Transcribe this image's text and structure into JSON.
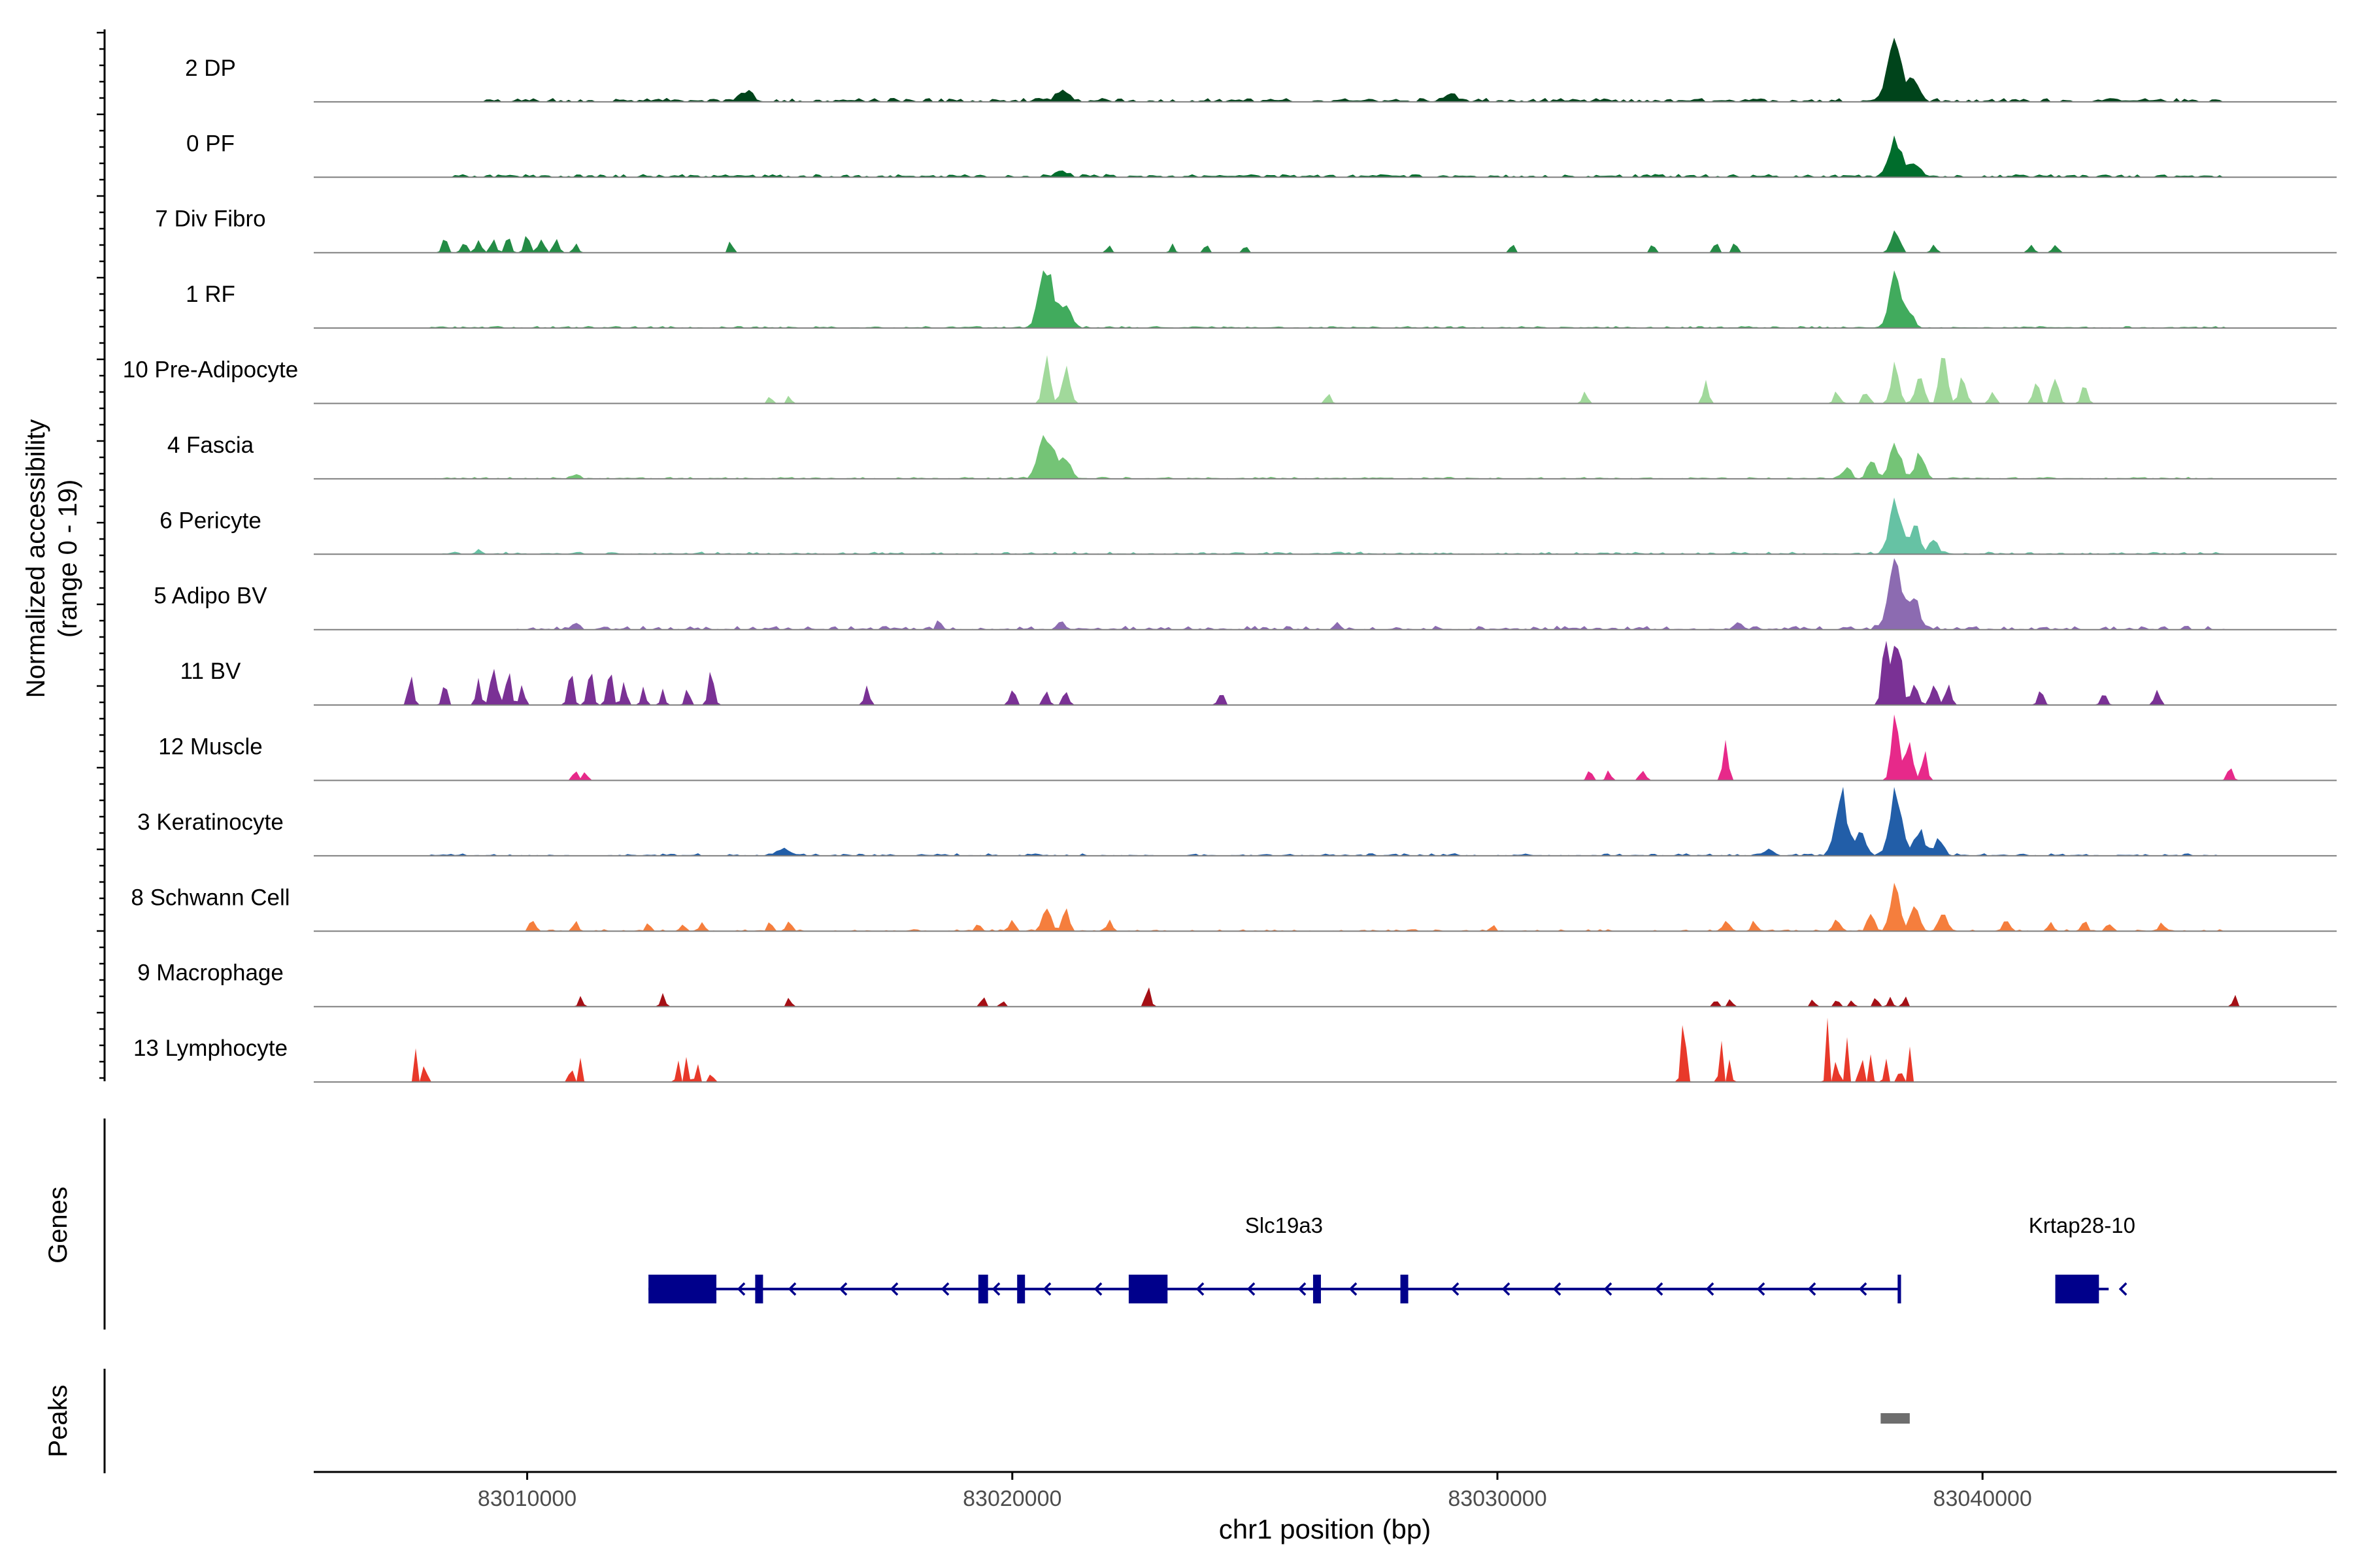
{
  "chart_data": {
    "type": "area",
    "ylabel_line1": "Normalized accessibility",
    "ylabel_line2": "(range 0 - 19)",
    "xlabel": "chr1 position (bp)",
    "xlim": [
      83005600,
      83047300
    ],
    "xticks": [
      {
        "value": 83010000,
        "label": "83010000"
      },
      {
        "value": 83020000,
        "label": "83020000"
      },
      {
        "value": 83030000,
        "label": "83030000"
      },
      {
        "value": 83040000,
        "label": "83040000"
      }
    ],
    "panels": {
      "genes": "Genes",
      "peaks": "Peaks"
    },
    "tracks": [
      {
        "name": "2 DP",
        "color": "#00441b",
        "bg": [
          0.02,
          0.06
        ],
        "bg_range": [
          83009000,
          83045000
        ],
        "peaks": [
          [
            83038200,
            0.85,
            220
          ],
          [
            83038600,
            0.3,
            160
          ],
          [
            83014500,
            0.15,
            200
          ],
          [
            83021000,
            0.12,
            200
          ],
          [
            83029000,
            0.1,
            200
          ]
        ]
      },
      {
        "name": "0 PF",
        "color": "#006d2c",
        "bg": [
          0.02,
          0.05
        ],
        "bg_range": [
          83008500,
          83045000
        ],
        "peaks": [
          [
            83038200,
            0.55,
            180
          ],
          [
            83038600,
            0.2,
            150
          ],
          [
            83021000,
            0.08,
            200
          ]
        ]
      },
      {
        "name": "7 Div Fibro",
        "color": "#238b45",
        "bg": [
          0,
          0
        ],
        "bg_range": [
          83008000,
          83045000
        ],
        "peaks": [
          [
            83008300,
            0.2,
            80
          ],
          [
            83008700,
            0.18,
            80
          ],
          [
            83009000,
            0.22,
            80
          ],
          [
            83009300,
            0.18,
            80
          ],
          [
            83009600,
            0.24,
            80
          ],
          [
            83010000,
            0.3,
            80
          ],
          [
            83010300,
            0.26,
            80
          ],
          [
            83010600,
            0.2,
            80
          ],
          [
            83011000,
            0.15,
            70
          ],
          [
            83014200,
            0.2,
            60
          ],
          [
            83022000,
            0.15,
            60
          ],
          [
            83023300,
            0.12,
            60
          ],
          [
            83024000,
            0.14,
            60
          ],
          [
            83024800,
            0.12,
            60
          ],
          [
            83030300,
            0.15,
            60
          ],
          [
            83033200,
            0.15,
            60
          ],
          [
            83034500,
            0.18,
            70
          ],
          [
            83034900,
            0.16,
            70
          ],
          [
            83038200,
            0.4,
            120
          ],
          [
            83039000,
            0.12,
            80
          ],
          [
            83041000,
            0.14,
            80
          ],
          [
            83041500,
            0.12,
            80
          ]
        ]
      },
      {
        "name": "1 RF",
        "color": "#41ab5d",
        "bg": [
          0.01,
          0.03
        ],
        "bg_range": [
          83008000,
          83045000
        ],
        "peaks": [
          [
            83020700,
            0.85,
            200
          ],
          [
            83021100,
            0.3,
            180
          ],
          [
            83038200,
            0.8,
            160
          ],
          [
            83038500,
            0.25,
            140
          ]
        ]
      },
      {
        "name": "10 Pre-Adipocyte",
        "color": "#a1d99b",
        "bg": [
          0,
          0
        ],
        "bg_range": [
          83008000,
          83045000
        ],
        "peaks": [
          [
            83015000,
            0.15,
            60
          ],
          [
            83015400,
            0.15,
            60
          ],
          [
            83020700,
            0.7,
            100
          ],
          [
            83021100,
            0.55,
            120
          ],
          [
            83026500,
            0.15,
            80
          ],
          [
            83031800,
            0.15,
            80
          ],
          [
            83034300,
            0.3,
            80
          ],
          [
            83037000,
            0.18,
            90
          ],
          [
            83037600,
            0.2,
            90
          ],
          [
            83038200,
            0.55,
            120
          ],
          [
            83038700,
            0.45,
            120
          ],
          [
            83039200,
            0.95,
            110
          ],
          [
            83039600,
            0.4,
            100
          ],
          [
            83040200,
            0.2,
            80
          ],
          [
            83041100,
            0.35,
            90
          ],
          [
            83041500,
            0.45,
            90
          ],
          [
            83042100,
            0.25,
            90
          ]
        ]
      },
      {
        "name": "4 Fascia",
        "color": "#74c476",
        "bg": [
          0.01,
          0.03
        ],
        "bg_range": [
          83008000,
          83045000
        ],
        "peaks": [
          [
            83020700,
            0.75,
            200
          ],
          [
            83021100,
            0.25,
            160
          ],
          [
            83037200,
            0.2,
            120
          ],
          [
            83037700,
            0.3,
            120
          ],
          [
            83038200,
            0.6,
            150
          ],
          [
            83038700,
            0.4,
            130
          ],
          [
            83011000,
            0.08,
            100
          ]
        ]
      },
      {
        "name": "6 Pericyte",
        "color": "#66c2a4",
        "bg": [
          0.01,
          0.04
        ],
        "bg_range": [
          83008000,
          83045000
        ],
        "peaks": [
          [
            83038200,
            0.7,
            180
          ],
          [
            83038600,
            0.4,
            150
          ],
          [
            83039000,
            0.2,
            120
          ],
          [
            83009000,
            0.06,
            100
          ]
        ]
      },
      {
        "name": "5 Adipo BV",
        "color": "#8c6bb1",
        "bg": [
          0.01,
          0.06
        ],
        "bg_range": [
          83009500,
          83045000
        ],
        "peaks": [
          [
            83038200,
            1.0,
            200
          ],
          [
            83038600,
            0.4,
            160
          ],
          [
            83011000,
            0.12,
            100
          ],
          [
            83018500,
            0.12,
            80
          ],
          [
            83021000,
            0.1,
            100
          ],
          [
            83026700,
            0.1,
            80
          ],
          [
            83035000,
            0.1,
            80
          ]
        ]
      },
      {
        "name": "11 BV",
        "color": "#7a3195",
        "bg": [
          0,
          0
        ],
        "bg_range": [
          83008000,
          83045000
        ],
        "peaks": [
          [
            83007600,
            0.4,
            80
          ],
          [
            83008300,
            0.35,
            70
          ],
          [
            83009000,
            0.35,
            70
          ],
          [
            83009300,
            0.65,
            90
          ],
          [
            83009600,
            0.5,
            90
          ],
          [
            83009900,
            0.3,
            70
          ],
          [
            83010900,
            0.45,
            80
          ],
          [
            83011300,
            0.5,
            80
          ],
          [
            83011700,
            0.55,
            80
          ],
          [
            83012000,
            0.4,
            70
          ],
          [
            83012400,
            0.3,
            60
          ],
          [
            83012800,
            0.25,
            60
          ],
          [
            83013300,
            0.35,
            60
          ],
          [
            83013800,
            0.55,
            80
          ],
          [
            83017000,
            0.25,
            80
          ],
          [
            83020000,
            0.3,
            80
          ],
          [
            83020700,
            0.2,
            80
          ],
          [
            83021100,
            0.25,
            80
          ],
          [
            83024300,
            0.2,
            80
          ],
          [
            83038000,
            1.05,
            100
          ],
          [
            83038250,
            1.0,
            120
          ],
          [
            83038600,
            0.4,
            100
          ],
          [
            83039000,
            0.35,
            100
          ],
          [
            83039300,
            0.3,
            80
          ],
          [
            83041200,
            0.2,
            80
          ],
          [
            83042500,
            0.2,
            80
          ],
          [
            83043600,
            0.2,
            80
          ]
        ]
      },
      {
        "name": "12 Muscle",
        "color": "#e7298a",
        "bg": [
          0,
          0
        ],
        "bg_range": [
          83008000,
          83045000
        ],
        "peaks": [
          [
            83011000,
            0.15,
            80
          ],
          [
            83011200,
            0.12,
            60
          ],
          [
            83031900,
            0.15,
            70
          ],
          [
            83032300,
            0.15,
            70
          ],
          [
            83033000,
            0.15,
            90
          ],
          [
            83034700,
            0.6,
            80
          ],
          [
            83038200,
            1.0,
            110
          ],
          [
            83038500,
            0.65,
            100
          ],
          [
            83038800,
            0.4,
            80
          ],
          [
            83045100,
            0.2,
            80
          ]
        ]
      },
      {
        "name": "3 Keratinocyte",
        "color": "#225ea8",
        "bg": [
          0.01,
          0.04
        ],
        "bg_range": [
          83008000,
          83045000
        ],
        "peaks": [
          [
            83037100,
            0.9,
            180
          ],
          [
            83037500,
            0.3,
            150
          ],
          [
            83038200,
            0.85,
            180
          ],
          [
            83038700,
            0.35,
            160
          ],
          [
            83039100,
            0.3,
            120
          ],
          [
            83015300,
            0.1,
            150
          ],
          [
            83035600,
            0.1,
            150
          ]
        ]
      },
      {
        "name": "8 Schwann Cell",
        "color": "#f57e3d",
        "bg": [
          0,
          0.03
        ],
        "bg_range": [
          83010000,
          83045000
        ],
        "peaks": [
          [
            83010100,
            0.15,
            80
          ],
          [
            83011000,
            0.15,
            80
          ],
          [
            83012500,
            0.12,
            70
          ],
          [
            83013200,
            0.12,
            70
          ],
          [
            83013600,
            0.15,
            70
          ],
          [
            83015000,
            0.12,
            70
          ],
          [
            83015400,
            0.15,
            70
          ],
          [
            83019300,
            0.12,
            70
          ],
          [
            83020000,
            0.18,
            80
          ],
          [
            83020700,
            0.4,
            120
          ],
          [
            83021100,
            0.3,
            100
          ],
          [
            83022000,
            0.15,
            80
          ],
          [
            83029900,
            0.1,
            70
          ],
          [
            83034700,
            0.15,
            90
          ],
          [
            83035300,
            0.15,
            90
          ],
          [
            83037000,
            0.2,
            100
          ],
          [
            83037700,
            0.25,
            100
          ],
          [
            83038200,
            0.65,
            140
          ],
          [
            83038600,
            0.4,
            120
          ],
          [
            83039200,
            0.3,
            120
          ],
          [
            83040500,
            0.2,
            100
          ],
          [
            83041400,
            0.15,
            80
          ],
          [
            83042100,
            0.15,
            80
          ],
          [
            83042600,
            0.12,
            80
          ],
          [
            83043700,
            0.15,
            80
          ]
        ]
      },
      {
        "name": "9 Macrophage",
        "color": "#a50f15",
        "bg": [
          0,
          0
        ],
        "bg_range": [
          83008000,
          83045000
        ],
        "peaks": [
          [
            83011100,
            0.15,
            60
          ],
          [
            83012800,
            0.2,
            60
          ],
          [
            83015400,
            0.15,
            60
          ],
          [
            83019400,
            0.15,
            60
          ],
          [
            83019800,
            0.12,
            60
          ],
          [
            83022800,
            0.25,
            80
          ],
          [
            83034500,
            0.12,
            60
          ],
          [
            83034800,
            0.12,
            60
          ],
          [
            83036500,
            0.12,
            60
          ],
          [
            83037000,
            0.12,
            60
          ],
          [
            83037300,
            0.12,
            60
          ],
          [
            83037800,
            0.15,
            60
          ],
          [
            83038100,
            0.2,
            60
          ],
          [
            83038400,
            0.15,
            60
          ],
          [
            83045200,
            0.15,
            60
          ]
        ]
      },
      {
        "name": "13 Lymphocyte",
        "color": "#e8392a",
        "bg": [
          0,
          0
        ],
        "bg_range": [
          83008000,
          83045000
        ],
        "peaks": [
          [
            83007700,
            0.45,
            40
          ],
          [
            83007900,
            0.45,
            40
          ],
          [
            83010900,
            0.45,
            40
          ],
          [
            83011100,
            0.45,
            40
          ],
          [
            83013100,
            0.45,
            40
          ],
          [
            83013300,
            0.45,
            40
          ],
          [
            83013500,
            0.45,
            40
          ],
          [
            83013800,
            0.3,
            40
          ],
          [
            83033800,
            0.85,
            40
          ],
          [
            83033900,
            0.45,
            40
          ],
          [
            83034600,
            0.85,
            40
          ],
          [
            83034800,
            0.45,
            40
          ],
          [
            83036800,
            1.0,
            40
          ],
          [
            83037000,
            0.55,
            40
          ],
          [
            83037200,
            0.6,
            40
          ],
          [
            83037500,
            0.85,
            40
          ],
          [
            83037700,
            0.5,
            40
          ],
          [
            83038000,
            0.45,
            40
          ],
          [
            83038300,
            0.45,
            40
          ],
          [
            83038500,
            0.45,
            40
          ]
        ]
      }
    ],
    "genes": [
      {
        "name": "Slc19a3",
        "strand": "-",
        "start": 83012500,
        "end": 83038300,
        "label_x": 83025600,
        "exons": [
          [
            83012500,
            83013900,
            "thick"
          ],
          [
            83014700,
            83014850,
            "thin"
          ],
          [
            83019300,
            83019500,
            "thin"
          ],
          [
            83020100,
            83020180,
            "thin"
          ],
          [
            83022400,
            83023200,
            "thick"
          ],
          [
            83026200,
            83026350,
            "thin"
          ],
          [
            83028000,
            83028100,
            "thin"
          ],
          [
            83038250,
            83038320,
            "line"
          ]
        ]
      },
      {
        "name": "Krtap28-10",
        "strand": "-",
        "start": 83041500,
        "end": 83042600,
        "label_x": 83042050,
        "exons": [
          [
            83041500,
            83042400,
            "thick"
          ]
        ]
      }
    ],
    "peak_regions": [
      [
        83037900,
        83038500
      ]
    ]
  },
  "colors": {
    "gene": "#00008b",
    "peak_region": "#6e6e6e",
    "baseline": "#7f7f7f",
    "axis": "#000000",
    "tick_label": "#4d4d4d"
  }
}
